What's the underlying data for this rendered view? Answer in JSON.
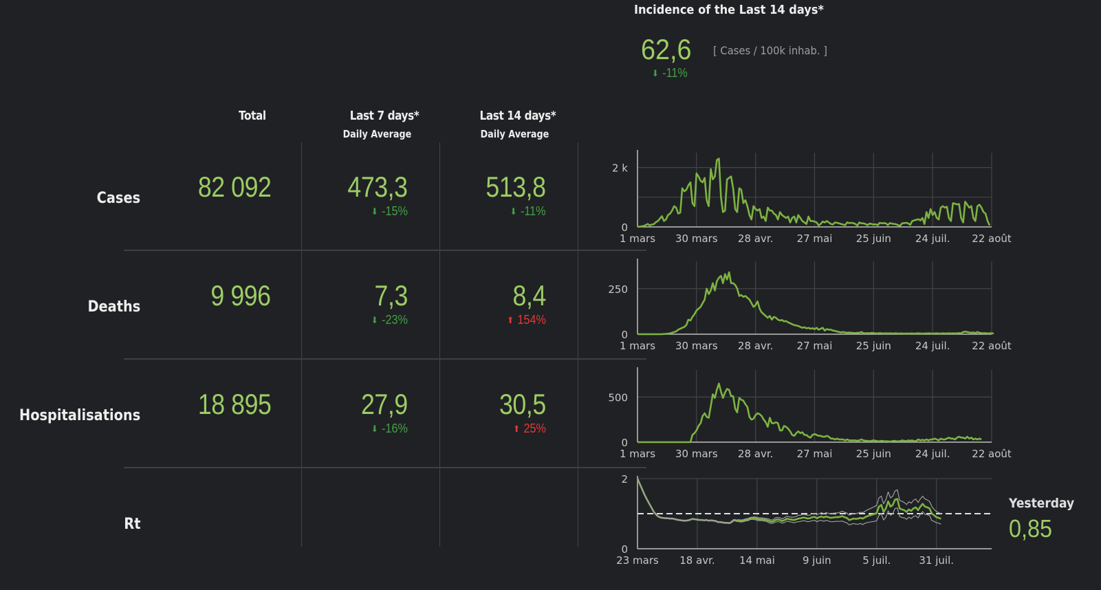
{
  "incidence": {
    "title": "Incidence of the Last 14 days*",
    "value": "62,6",
    "unit": "[ Cases / 100k inhab. ]",
    "change": "-11%",
    "direction": "down"
  },
  "table": {
    "headers": {
      "total": "Total",
      "last7": "Last 7 days*",
      "last7_sub": "Daily Average",
      "last14": "Last 14 days*",
      "last14_sub": "Daily Average"
    },
    "rows": [
      {
        "label": "Cases",
        "total": "82 092",
        "last7": "473,3",
        "last7_change": "-15%",
        "last7_dir": "down",
        "last14": "513,8",
        "last14_change": "-11%",
        "last14_dir": "down"
      },
      {
        "label": "Deaths",
        "total": "9 996",
        "last7": "7,3",
        "last7_change": "-23%",
        "last7_dir": "down",
        "last14": "8,4",
        "last14_change": "154%",
        "last14_dir": "up"
      },
      {
        "label": "Hospitalisations",
        "total": "18 895",
        "last7": "27,9",
        "last7_change": "-16%",
        "last7_dir": "down",
        "last14": "30,5",
        "last14_change": "25%",
        "last14_dir": "up"
      },
      {
        "label": "Rt"
      }
    ]
  },
  "rt": {
    "yesterday_label": "Yesterday",
    "yesterday_value": "0,85"
  },
  "colors": {
    "background": "#202124",
    "accent_green": "#9ccc65",
    "line_green": "#7cb342",
    "down_green": "#43a047",
    "up_red": "#e53935",
    "grid": "#444548",
    "ci_band": "#9e9e9e"
  },
  "chart_data": [
    {
      "type": "line",
      "name": "cases",
      "title": "Cases",
      "xlabel": "",
      "ylabel": "",
      "x_tick_labels": [
        "1 mars",
        "30 mars",
        "28 avr.",
        "27 mai",
        "25 juin",
        "24 juil.",
        "22 août"
      ],
      "y_tick_labels": [
        "0",
        "2 k"
      ],
      "y_ticks": [
        0,
        1000,
        2000
      ],
      "ylim": [
        0,
        2500
      ],
      "x_days": 175,
      "grid": true,
      "series": [
        {
          "name": "daily cases",
          "values": [
            0,
            10,
            20,
            30,
            60,
            100,
            50,
            80,
            90,
            160,
            200,
            280,
            360,
            200,
            250,
            400,
            450,
            550,
            700,
            650,
            450,
            480,
            1300,
            1200,
            1250,
            1400,
            1500,
            800,
            700,
            1800,
            1700,
            1550,
            1500,
            1650,
            900,
            700,
            1950,
            1600,
            1700,
            2250,
            2300,
            1000,
            500,
            550,
            1600,
            1650,
            1700,
            1300,
            600,
            500,
            1300,
            1250,
            800,
            900,
            700,
            400,
            250,
            700,
            600,
            550,
            600,
            300,
            350,
            200,
            650,
            550,
            550,
            450,
            400,
            250,
            500,
            400,
            350,
            300,
            350,
            150,
            300,
            350,
            150,
            400,
            300,
            200,
            150,
            100,
            350,
            200,
            200,
            180,
            150,
            50,
            100,
            180,
            150,
            200,
            150,
            100,
            80,
            150,
            140,
            120,
            100,
            80,
            60,
            150,
            130,
            140,
            130,
            100,
            50,
            150,
            120,
            120,
            100,
            60,
            110,
            100,
            80,
            90,
            60,
            140,
            120,
            130,
            120,
            60,
            130,
            110,
            100,
            90,
            60,
            40,
            120,
            130,
            140,
            120,
            70,
            200,
            220,
            240,
            260,
            220,
            300,
            100,
            500,
            300,
            600,
            400,
            500,
            300,
            250,
            650,
            700,
            650,
            680,
            300,
            200,
            800,
            780,
            760,
            770,
            300,
            150,
            850,
            750,
            650,
            700,
            300,
            200,
            700,
            750,
            650,
            500,
            450,
            200,
            50
          ]
        }
      ]
    },
    {
      "type": "line",
      "name": "deaths",
      "title": "Deaths",
      "x_tick_labels": [
        "1 mars",
        "30 mars",
        "28 avr.",
        "27 mai",
        "25 juin",
        "24 juil.",
        "22 août"
      ],
      "y_tick_labels": [
        "0",
        "250"
      ],
      "y_ticks": [
        0,
        250
      ],
      "ylim": [
        0,
        400
      ],
      "x_days": 175,
      "grid": true,
      "series": [
        {
          "name": "daily deaths",
          "values": [
            0,
            0,
            0,
            0,
            0,
            0,
            0,
            0,
            0,
            0,
            0,
            0,
            0,
            1,
            2,
            3,
            5,
            8,
            12,
            15,
            25,
            30,
            35,
            40,
            50,
            80,
            75,
            95,
            110,
            130,
            140,
            150,
            170,
            190,
            250,
            220,
            240,
            280,
            240,
            290,
            310,
            320,
            280,
            330,
            300,
            340,
            280,
            280,
            270,
            250,
            210,
            215,
            205,
            210,
            200,
            190,
            170,
            150,
            160,
            180,
            140,
            120,
            110,
            100,
            90,
            100,
            80,
            95,
            90,
            80,
            75,
            78,
            70,
            72,
            65,
            60,
            55,
            50,
            48,
            45,
            40,
            35,
            38,
            32,
            35,
            30,
            33,
            28,
            35,
            25,
            30,
            35,
            20,
            28,
            25,
            25,
            20,
            18,
            15,
            12,
            10,
            12,
            10,
            8,
            9,
            8,
            7,
            6,
            8,
            7,
            12,
            6,
            5,
            6,
            5,
            7,
            6,
            5,
            4,
            6,
            5,
            4,
            5,
            4,
            5,
            4,
            4,
            5,
            3,
            4,
            4,
            3,
            4,
            3,
            4,
            4,
            3,
            4,
            5,
            4,
            3,
            4,
            4,
            5,
            4,
            3,
            4,
            5,
            4,
            3,
            5,
            4,
            4,
            5,
            4,
            5,
            4,
            5,
            6,
            5,
            12,
            14,
            12,
            10,
            8,
            10,
            6,
            12,
            8,
            6,
            5,
            6,
            4,
            5,
            5,
            4
          ]
        }
      ]
    },
    {
      "type": "line",
      "name": "hospitalisations",
      "title": "Hospitalisations",
      "x_tick_labels": [
        "1 mars",
        "30 mars",
        "28 avr.",
        "27 mai",
        "25 juin",
        "24 juil.",
        "22 août"
      ],
      "y_tick_labels": [
        "0",
        "500"
      ],
      "y_ticks": [
        0,
        500
      ],
      "ylim": [
        0,
        800
      ],
      "x_days": 175,
      "grid": true,
      "series": [
        {
          "name": "daily hospitalisations",
          "values": [
            0,
            0,
            0,
            0,
            0,
            0,
            0,
            0,
            0,
            0,
            0,
            0,
            0,
            0,
            0,
            0,
            0,
            0,
            0,
            0,
            0,
            0,
            0,
            0,
            0,
            0,
            0,
            80,
            100,
            130,
            180,
            210,
            290,
            320,
            280,
            270,
            400,
            530,
            490,
            580,
            650,
            560,
            490,
            550,
            590,
            580,
            510,
            510,
            370,
            330,
            490,
            470,
            460,
            420,
            390,
            280,
            250,
            260,
            300,
            320,
            310,
            290,
            250,
            220,
            170,
            270,
            210,
            210,
            220,
            210,
            130,
            130,
            180,
            170,
            150,
            120,
            80,
            70,
            100,
            120,
            100,
            110,
            80,
            80,
            60,
            50,
            80,
            90,
            80,
            70,
            70,
            60,
            60,
            70,
            60,
            40,
            40,
            30,
            40,
            30,
            30,
            30,
            20,
            30,
            20,
            20,
            20,
            20,
            15,
            20,
            30,
            20,
            15,
            15,
            10,
            15,
            20,
            15,
            10,
            10,
            15,
            10,
            10,
            10,
            5,
            10,
            15,
            10,
            10,
            10,
            20,
            15,
            10,
            20,
            15,
            20,
            10,
            15,
            30,
            20,
            25,
            20,
            30,
            20,
            30,
            30,
            40,
            30,
            20,
            40,
            30,
            30,
            40,
            50,
            40,
            40,
            30,
            50,
            60,
            50,
            50,
            40,
            60,
            40,
            50,
            30,
            40,
            30,
            40,
            30
          ]
        }
      ]
    },
    {
      "type": "line",
      "name": "rt",
      "title": "Rt",
      "x_tick_labels": [
        "23 mars",
        "18 avr.",
        "14 mai",
        "9 juin",
        "5 juil.",
        "31 juil."
      ],
      "y_tick_labels": [
        "0",
        "2"
      ],
      "y_ticks": [
        0,
        2
      ],
      "ylim": [
        0,
        2
      ],
      "reference_line": 1,
      "x_days": 155,
      "grid": true,
      "series": [
        {
          "name": "Rt",
          "values": [
            2.0,
            1.85,
            1.7,
            1.55,
            1.42,
            1.3,
            1.18,
            1.06,
            0.98,
            0.92,
            0.89,
            0.88,
            0.87,
            0.87,
            0.86,
            0.86,
            0.85,
            0.83,
            0.82,
            0.81,
            0.8,
            0.8,
            0.81,
            0.83,
            0.85,
            0.84,
            0.83,
            0.82,
            0.82,
            0.81,
            0.82,
            0.8,
            0.81,
            0.8,
            0.79,
            0.76,
            0.76,
            0.75,
            0.74,
            0.74,
            0.73,
            0.77,
            0.82,
            0.8,
            0.8,
            0.79,
            0.8,
            0.82,
            0.83,
            0.86,
            0.87,
            0.87,
            0.85,
            0.84,
            0.84,
            0.83,
            0.82,
            0.8,
            0.77,
            0.78,
            0.82,
            0.83,
            0.82,
            0.79,
            0.82,
            0.86,
            0.84,
            0.83,
            0.82,
            0.84,
            0.86,
            0.87,
            0.89,
            0.88,
            0.86,
            0.87,
            0.9,
            0.91,
            0.87,
            0.9,
            0.92,
            0.89,
            0.92,
            0.9,
            0.88,
            0.89,
            0.9,
            0.9,
            0.91,
            0.93,
            0.9,
            0.88,
            0.82,
            0.84,
            0.86,
            0.85,
            0.86,
            0.88,
            0.86,
            0.9,
            0.93,
            0.95,
            0.97,
            0.99,
            1.02,
            1.2,
            1.25,
            1.05,
            1.15,
            1.35,
            1.2,
            1.25,
            1.4,
            1.42,
            1.15,
            1.12,
            1.1,
            1.05,
            1.12,
            1.08,
            1.15,
            1.18,
            1.1,
            1.2,
            1.28,
            1.2,
            1.18,
            1.15,
            1.0,
            0.95,
            0.9,
            0.88,
            0.85
          ]
        },
        {
          "name": "Rt upper",
          "values": [
            2.0,
            1.86,
            1.71,
            1.56,
            1.43,
            1.31,
            1.19,
            1.07,
            0.99,
            0.93,
            0.9,
            0.89,
            0.88,
            0.88,
            0.87,
            0.87,
            0.86,
            0.84,
            0.83,
            0.82,
            0.81,
            0.81,
            0.82,
            0.84,
            0.86,
            0.85,
            0.84,
            0.83,
            0.83,
            0.82,
            0.83,
            0.81,
            0.82,
            0.81,
            0.8,
            0.77,
            0.77,
            0.76,
            0.75,
            0.75,
            0.74,
            0.79,
            0.84,
            0.82,
            0.83,
            0.82,
            0.83,
            0.85,
            0.86,
            0.89,
            0.9,
            0.91,
            0.89,
            0.88,
            0.88,
            0.87,
            0.86,
            0.85,
            0.82,
            0.83,
            0.88,
            0.89,
            0.88,
            0.85,
            0.89,
            0.93,
            0.91,
            0.9,
            0.9,
            0.92,
            0.95,
            0.96,
            0.98,
            0.97,
            0.95,
            0.96,
            1.0,
            1.01,
            0.97,
            1.0,
            1.03,
            1.0,
            1.03,
            1.01,
            0.99,
            1.01,
            1.02,
            1.02,
            1.04,
            1.07,
            1.04,
            1.02,
            0.96,
            0.98,
            1.0,
            1.0,
            1.02,
            1.04,
            1.03,
            1.07,
            1.11,
            1.14,
            1.17,
            1.2,
            1.24,
            1.45,
            1.5,
            1.28,
            1.4,
            1.62,
            1.45,
            1.5,
            1.65,
            1.68,
            1.38,
            1.35,
            1.32,
            1.26,
            1.34,
            1.3,
            1.38,
            1.42,
            1.32,
            1.42,
            1.5,
            1.42,
            1.39,
            1.35,
            1.2,
            1.12,
            1.06,
            1.03,
            1.0
          ]
        },
        {
          "name": "Rt lower",
          "values": [
            2.0,
            1.84,
            1.69,
            1.54,
            1.41,
            1.29,
            1.17,
            1.05,
            0.97,
            0.91,
            0.88,
            0.87,
            0.86,
            0.86,
            0.85,
            0.85,
            0.84,
            0.82,
            0.81,
            0.8,
            0.79,
            0.79,
            0.8,
            0.82,
            0.84,
            0.83,
            0.82,
            0.81,
            0.81,
            0.8,
            0.81,
            0.79,
            0.8,
            0.79,
            0.78,
            0.75,
            0.75,
            0.74,
            0.73,
            0.73,
            0.72,
            0.75,
            0.8,
            0.78,
            0.77,
            0.76,
            0.77,
            0.79,
            0.8,
            0.83,
            0.84,
            0.83,
            0.81,
            0.8,
            0.8,
            0.79,
            0.78,
            0.75,
            0.72,
            0.73,
            0.76,
            0.77,
            0.76,
            0.73,
            0.75,
            0.79,
            0.77,
            0.76,
            0.74,
            0.76,
            0.77,
            0.78,
            0.8,
            0.79,
            0.77,
            0.78,
            0.8,
            0.81,
            0.77,
            0.8,
            0.81,
            0.78,
            0.81,
            0.79,
            0.77,
            0.77,
            0.78,
            0.78,
            0.78,
            0.79,
            0.76,
            0.74,
            0.68,
            0.7,
            0.72,
            0.7,
            0.7,
            0.72,
            0.69,
            0.73,
            0.75,
            0.76,
            0.77,
            0.78,
            0.8,
            0.95,
            1.0,
            0.82,
            0.9,
            1.08,
            0.95,
            1.0,
            1.15,
            1.16,
            0.92,
            0.89,
            0.88,
            0.84,
            0.9,
            0.86,
            0.92,
            0.94,
            0.88,
            0.98,
            1.06,
            0.98,
            0.97,
            0.95,
            0.8,
            0.78,
            0.74,
            0.73,
            0.7
          ]
        }
      ]
    }
  ]
}
